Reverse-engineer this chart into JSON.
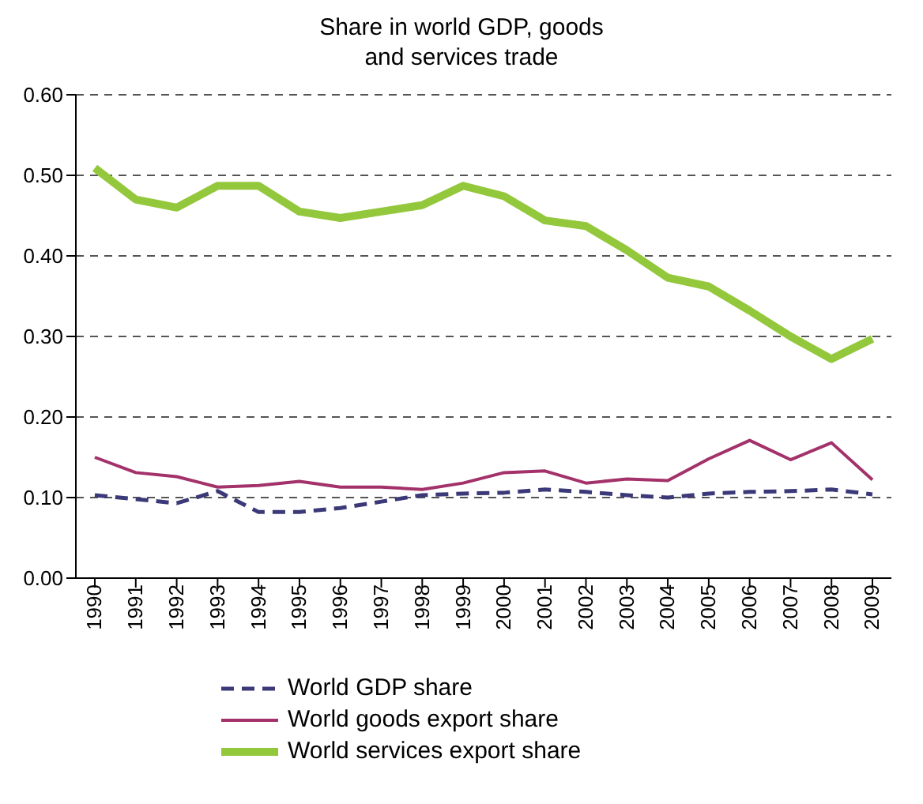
{
  "chart_data": {
    "type": "line",
    "title": "Share in world GDP, goods\nand services trade",
    "categories": [
      "1990",
      "1991",
      "1992",
      "1993",
      "1994",
      "1995",
      "1996",
      "1997",
      "1998",
      "1999",
      "2000",
      "2001",
      "2002",
      "2003",
      "2004",
      "2005",
      "2006",
      "2007",
      "2008",
      "2009"
    ],
    "series": [
      {
        "name": "World GDP share",
        "color": "#3b3978",
        "line_style": "dashed",
        "values": [
          0.103,
          0.098,
          0.093,
          0.108,
          0.082,
          0.082,
          0.087,
          0.095,
          0.103,
          0.105,
          0.106,
          0.11,
          0.107,
          0.103,
          0.1,
          0.105,
          0.107,
          0.108,
          0.11,
          0.104
        ]
      },
      {
        "name": "World goods export share",
        "color": "#a3316a",
        "line_style": "solid",
        "values": [
          0.15,
          0.131,
          0.126,
          0.113,
          0.115,
          0.12,
          0.113,
          0.113,
          0.11,
          0.118,
          0.131,
          0.133,
          0.118,
          0.123,
          0.121,
          0.148,
          0.171,
          0.147,
          0.168,
          0.122
        ]
      },
      {
        "name": "World services export share",
        "color": "#94c83c",
        "line_style": "solid",
        "values": [
          0.509,
          0.47,
          0.46,
          0.487,
          0.487,
          0.455,
          0.447,
          0.455,
          0.463,
          0.487,
          0.474,
          0.444,
          0.437,
          0.407,
          0.373,
          0.362,
          0.332,
          0.3,
          0.272,
          0.297
        ]
      }
    ],
    "ylim": [
      0,
      0.6
    ],
    "yticks": [
      {
        "value": 0,
        "label": "0.00"
      },
      {
        "value": 0.1,
        "label": "0.10"
      },
      {
        "value": 0.2,
        "label": "0.20"
      },
      {
        "value": 0.3,
        "label": "0.30"
      },
      {
        "value": 0.4,
        "label": "0.40"
      },
      {
        "value": 0.5,
        "label": "0.50"
      },
      {
        "value": 0.6,
        "label": "0.60"
      }
    ],
    "grid": "y",
    "legend": "bottom",
    "marker": "none"
  }
}
